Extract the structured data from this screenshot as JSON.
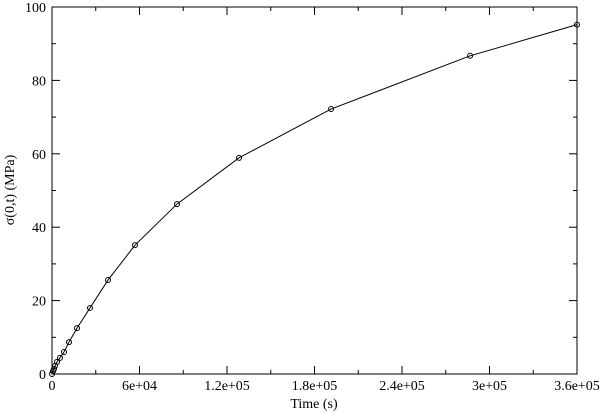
{
  "chart_data": {
    "type": "line",
    "xlabel": "Time (s)",
    "ylabel": "σ(0,t) (MPa)",
    "series": [
      {
        "name": "σ(0,t)",
        "color": "#000000",
        "x": [
          0,
          690,
          1370,
          2060,
          3430,
          5490,
          8230,
          11660,
          17150,
          26060,
          38400,
          56900,
          85700,
          128250,
          191350,
          286700,
          360000
        ],
        "values": [
          0,
          0.8,
          1.4,
          2.2,
          3.3,
          4.4,
          6.0,
          8.7,
          12.5,
          18.0,
          25.6,
          35.1,
          46.3,
          58.9,
          72.2,
          86.7,
          95.2
        ]
      }
    ],
    "xlim": [
      0,
      360000
    ],
    "xticks": [
      0,
      {
        "value": 60000,
        "label": "6e+04"
      },
      {
        "value": 120000,
        "label": "1.2e+05"
      },
      {
        "value": 180000,
        "label": "1.8e+05"
      },
      {
        "value": 240000,
        "label": "2.4e+05"
      },
      {
        "value": 300000,
        "label": "3e+05"
      },
      {
        "value": 360000,
        "label": "3.6e+05"
      }
    ],
    "ylim": [
      0,
      100
    ],
    "yticks": [
      0,
      20,
      40,
      60,
      80,
      100
    ],
    "grid": false,
    "markers": true
  }
}
